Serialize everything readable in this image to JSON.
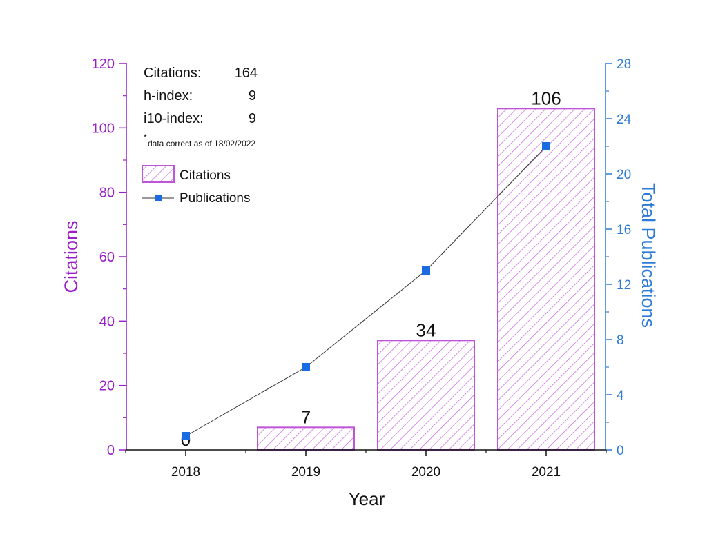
{
  "colors": {
    "left_axis": "#9B1FC8",
    "right_axis": "#2E7BD6",
    "bar_edge": "#C054D8",
    "bar_hatch": "#C86ADF",
    "line": "#333333",
    "marker": "#1A6CE0",
    "x_axis": "#111111"
  },
  "stats": {
    "citations_label": "Citations:",
    "citations_value": "164",
    "hindex_label": "h-index:",
    "hindex_value": "9",
    "i10_label": "i10-index:",
    "i10_value": "9",
    "note_mark": "*",
    "note_text": "data correct as of 18/02/2022"
  },
  "chart_data": {
    "type": "bar",
    "categories": [
      "2018",
      "2019",
      "2020",
      "2021"
    ],
    "xlabel": "Year",
    "ylabel": "Citations",
    "y2label": "Total Publications",
    "ylim": [
      0,
      120
    ],
    "y2lim": [
      0,
      28
    ],
    "yticks": [
      0,
      20,
      40,
      60,
      80,
      100,
      120
    ],
    "y2ticks": [
      0,
      4,
      8,
      12,
      16,
      20,
      24,
      28
    ],
    "legend_position": "top-left",
    "grid": false,
    "series": [
      {
        "name": "Citations",
        "type": "bar",
        "axis": "left",
        "values": [
          0,
          7,
          34,
          106
        ],
        "labels": [
          "0",
          "7",
          "34",
          "106"
        ]
      },
      {
        "name": "Publications",
        "type": "line",
        "axis": "right",
        "values": [
          1,
          6,
          13,
          22
        ]
      }
    ]
  }
}
